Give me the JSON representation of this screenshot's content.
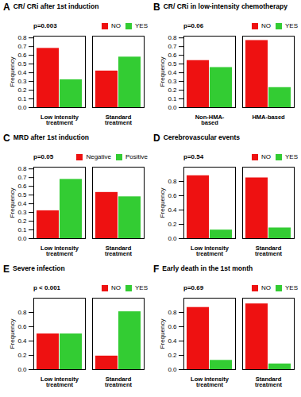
{
  "chart_data": [
    {
      "type": "bar",
      "title": "CR/ CRi after 1st induction",
      "annotations": [
        "A",
        "p=0.003"
      ],
      "categories": [
        "Low intensity treatment",
        "Standard treatment"
      ],
      "series": [
        {
          "name": "NO",
          "color": "#ee1111",
          "values": [
            0.68,
            0.42
          ]
        },
        {
          "name": "YES",
          "color": "#33cc33",
          "values": [
            0.32,
            0.58
          ]
        }
      ],
      "ylabel": "Frequency",
      "ylim": [
        0.0,
        0.82
      ],
      "yticks": [
        {
          "value": 0.0,
          "label": "0.0"
        },
        0.1,
        0.2,
        0.3,
        0.4,
        0.5,
        0.6,
        0.7,
        0.8
      ],
      "legend": "upper right"
    },
    {
      "type": "bar",
      "title": "CR/ CRi in low-intensity chemotherapy",
      "annotations": [
        "B",
        "p=0.06"
      ],
      "categories": [
        "Non-HMA-based",
        "HMA-based"
      ],
      "series": [
        {
          "name": "NO",
          "color": "#ee1111",
          "values": [
            0.54,
            0.77
          ]
        },
        {
          "name": "YES",
          "color": "#33cc33",
          "values": [
            0.46,
            0.23
          ]
        }
      ],
      "ylabel": "Frequency",
      "ylim": [
        0.0,
        0.82
      ],
      "yticks": [
        {
          "value": 0.0,
          "label": "0.0"
        },
        0.1,
        0.2,
        0.3,
        0.4,
        0.5,
        0.6,
        0.7,
        0.8
      ],
      "legend": "upper right"
    },
    {
      "type": "bar",
      "title": "MRD after 1st induction",
      "annotations": [
        "C",
        "p=0.05"
      ],
      "categories": [
        "Low intensity treatment",
        "Standard treatment"
      ],
      "series": [
        {
          "name": "Negative",
          "color": "#ee1111",
          "values": [
            0.32,
            0.53
          ]
        },
        {
          "name": "Positive",
          "color": "#33cc33",
          "values": [
            0.68,
            0.48
          ]
        }
      ],
      "ylabel": "Frequency",
      "ylim": [
        0.0,
        0.82
      ],
      "yticks": [
        {
          "value": 0.0,
          "label": "0.0"
        },
        0.1,
        0.2,
        0.3,
        0.4,
        0.5,
        0.6,
        0.7,
        0.8
      ],
      "legend": "upper right"
    },
    {
      "type": "bar",
      "title": "Cerebrovascular events",
      "annotations": [
        "D",
        "p=0.54"
      ],
      "categories": [
        "Low intensity treatment",
        "Standard treatment"
      ],
      "series": [
        {
          "name": "NO",
          "color": "#ee1111",
          "values": [
            0.88,
            0.85
          ]
        },
        {
          "name": "YES",
          "color": "#33cc33",
          "values": [
            0.12,
            0.15
          ]
        }
      ],
      "ylabel": "Frequency",
      "ylim": [
        0.0,
        1.0
      ],
      "yticks": [
        {
          "value": 0.0,
          "label": "0.0"
        },
        0.2,
        0.4,
        0.6,
        0.8
      ],
      "legend": "upper right"
    },
    {
      "type": "bar",
      "title": "Severe infection",
      "annotations": [
        "E",
        "p < 0.001"
      ],
      "categories": [
        "Low intensity treatment",
        "Standard treatment"
      ],
      "series": [
        {
          "name": "NO",
          "color": "#ee1111",
          "values": [
            0.5,
            0.19
          ]
        },
        {
          "name": "YES",
          "color": "#33cc33",
          "values": [
            0.5,
            0.81
          ]
        }
      ],
      "ylabel": "Frequency",
      "ylim": [
        0.0,
        1.0
      ],
      "yticks": [
        {
          "value": 0.0,
          "label": "0.0"
        },
        0.2,
        0.4,
        0.6,
        0.8
      ],
      "legend": "upper right"
    },
    {
      "type": "bar",
      "title": "Early death in the 1st month",
      "annotations": [
        "F",
        "p=0.69"
      ],
      "categories": [
        "Low intensity treatment",
        "Standard treatment"
      ],
      "series": [
        {
          "name": "NO",
          "color": "#ee1111",
          "values": [
            0.87,
            0.92
          ]
        },
        {
          "name": "YES",
          "color": "#33cc33",
          "values": [
            0.13,
            0.08
          ]
        }
      ],
      "ylabel": "Frequency",
      "ylim": [
        0.0,
        1.0
      ],
      "yticks": [
        {
          "value": 0.0,
          "label": "0.0"
        },
        0.2,
        0.4,
        0.6,
        0.8
      ],
      "legend": "upper right"
    }
  ]
}
